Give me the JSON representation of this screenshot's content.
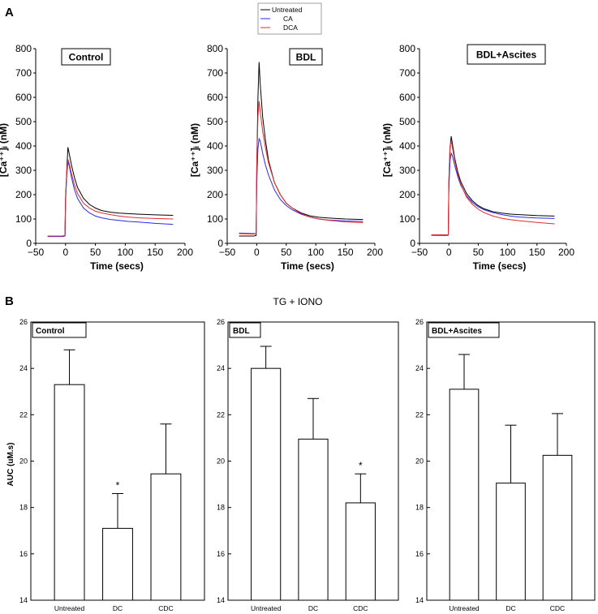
{
  "panel_labels": {
    "a": "A",
    "b": "B"
  },
  "legend": {
    "entries": [
      {
        "label": "Untreated",
        "color": "#000000"
      },
      {
        "label": "CA",
        "color": "#2a2ae8"
      },
      {
        "label": "DCA",
        "color": "#e82a2a"
      }
    ]
  },
  "section_b_title": "TG + IONO",
  "chart_data": [
    {
      "type": "line",
      "title": "Control",
      "xlabel": "Time (secs)",
      "ylabel": "[Ca⁺⁺]ᵢ (nM)",
      "xlim": [
        -50,
        200
      ],
      "ylim": [
        0,
        800
      ],
      "xticks": [
        -50,
        0,
        50,
        100,
        150,
        200
      ],
      "yticks": [
        0,
        100,
        200,
        300,
        400,
        500,
        600,
        700,
        800
      ],
      "series": [
        {
          "name": "Untreated",
          "color": "#000000",
          "x": [
            -30,
            -5,
            -1,
            0,
            2,
            4,
            6,
            10,
            15,
            20,
            30,
            40,
            50,
            60,
            75,
            90,
            105,
            120,
            150,
            180
          ],
          "y": [
            30,
            30,
            32,
            190,
            300,
            395,
            370,
            320,
            270,
            230,
            185,
            160,
            145,
            135,
            128,
            124,
            122,
            120,
            117,
            115
          ]
        },
        {
          "name": "CA",
          "color": "#2a2ae8",
          "x": [
            -30,
            -5,
            -1,
            0,
            2,
            4,
            6,
            10,
            15,
            20,
            30,
            40,
            50,
            60,
            75,
            90,
            105,
            120,
            150,
            180
          ],
          "y": [
            28,
            28,
            30,
            170,
            280,
            335,
            320,
            270,
            220,
            185,
            145,
            125,
            112,
            105,
            98,
            94,
            90,
            88,
            82,
            78
          ]
        },
        {
          "name": "DCA",
          "color": "#e82a2a",
          "x": [
            -30,
            -5,
            -1,
            0,
            2,
            4,
            6,
            10,
            15,
            20,
            30,
            40,
            50,
            60,
            75,
            90,
            105,
            120,
            150,
            180
          ],
          "y": [
            30,
            30,
            32,
            180,
            290,
            345,
            330,
            285,
            240,
            205,
            165,
            145,
            132,
            125,
            118,
            112,
            108,
            105,
            102,
            100
          ]
        }
      ]
    },
    {
      "type": "line",
      "title": "BDL",
      "xlabel": "Time (secs)",
      "ylabel": "[Ca⁺⁺]ᵢ (nM)",
      "xlim": [
        -50,
        200
      ],
      "ylim": [
        0,
        800
      ],
      "xticks": [
        -50,
        0,
        50,
        100,
        150,
        200
      ],
      "yticks": [
        0,
        100,
        200,
        300,
        400,
        500,
        600,
        700,
        800
      ],
      "series": [
        {
          "name": "Untreated",
          "color": "#000000",
          "x": [
            -30,
            -5,
            -1,
            0,
            2,
            4,
            6,
            10,
            15,
            20,
            30,
            40,
            50,
            60,
            75,
            90,
            105,
            120,
            150,
            180
          ],
          "y": [
            30,
            30,
            32,
            300,
            600,
            745,
            650,
            520,
            420,
            340,
            250,
            200,
            165,
            145,
            125,
            113,
            107,
            104,
            100,
            98
          ]
        },
        {
          "name": "CA",
          "color": "#2a2ae8",
          "x": [
            -30,
            -5,
            -1,
            0,
            2,
            4,
            6,
            10,
            15,
            20,
            30,
            40,
            50,
            60,
            75,
            90,
            105,
            120,
            150,
            180
          ],
          "y": [
            42,
            40,
            40,
            250,
            390,
            430,
            420,
            370,
            320,
            280,
            220,
            180,
            155,
            138,
            120,
            108,
            100,
            96,
            92,
            90
          ]
        },
        {
          "name": "DCA",
          "color": "#e82a2a",
          "x": [
            -30,
            -5,
            -1,
            0,
            2,
            4,
            6,
            10,
            15,
            20,
            30,
            40,
            50,
            60,
            75,
            90,
            105,
            120,
            150,
            180
          ],
          "y": [
            40,
            38,
            40,
            320,
            520,
            585,
            540,
            460,
            390,
            330,
            250,
            200,
            165,
            145,
            122,
            108,
            100,
            95,
            88,
            85
          ]
        }
      ]
    },
    {
      "type": "line",
      "title": "BDL+Ascites",
      "xlabel": "Time (secs)",
      "ylabel": "[Ca⁺⁺]ᵢ (nM)",
      "xlim": [
        -50,
        200
      ],
      "ylim": [
        0,
        800
      ],
      "xticks": [
        -50,
        0,
        50,
        100,
        150,
        200
      ],
      "yticks": [
        0,
        100,
        200,
        300,
        400,
        500,
        600,
        700,
        800
      ],
      "series": [
        {
          "name": "Untreated",
          "color": "#000000",
          "x": [
            -30,
            -5,
            -1,
            0,
            2,
            4,
            6,
            10,
            15,
            20,
            30,
            40,
            50,
            60,
            75,
            90,
            105,
            120,
            150,
            180
          ],
          "y": [
            35,
            34,
            35,
            250,
            390,
            440,
            410,
            350,
            295,
            255,
            205,
            175,
            155,
            142,
            130,
            124,
            120,
            118,
            114,
            112
          ]
        },
        {
          "name": "CA",
          "color": "#2a2ae8",
          "x": [
            -30,
            -5,
            -1,
            0,
            2,
            4,
            6,
            10,
            15,
            20,
            30,
            40,
            50,
            60,
            75,
            90,
            105,
            120,
            150,
            180
          ],
          "y": [
            33,
            32,
            33,
            220,
            340,
            370,
            360,
            320,
            275,
            240,
            195,
            168,
            150,
            138,
            126,
            118,
            112,
            108,
            104,
            102
          ]
        },
        {
          "name": "DCA",
          "color": "#e82a2a",
          "x": [
            -30,
            -5,
            -1,
            0,
            2,
            4,
            6,
            10,
            15,
            20,
            30,
            40,
            50,
            60,
            75,
            90,
            105,
            120,
            150,
            180
          ],
          "y": [
            35,
            34,
            35,
            260,
            400,
            420,
            395,
            340,
            285,
            245,
            190,
            160,
            140,
            126,
            112,
            103,
            97,
            93,
            86,
            80
          ]
        }
      ]
    },
    {
      "type": "bar",
      "title": "Control",
      "ylabel": "AUC (uM.s)",
      "ylim": [
        14,
        26
      ],
      "yticks": [
        14,
        16,
        18,
        20,
        22,
        24,
        26
      ],
      "categories": [
        "Untreated",
        "DC",
        "CDC"
      ],
      "values": [
        23.3,
        17.1,
        19.45
      ],
      "errors": [
        1.5,
        1.5,
        2.15
      ],
      "annotations": [
        "",
        "*",
        ""
      ]
    },
    {
      "type": "bar",
      "title": "BDL",
      "ylabel": "",
      "ylim": [
        14,
        26
      ],
      "yticks": [
        14,
        16,
        18,
        20,
        22,
        24,
        26
      ],
      "categories": [
        "Untreated",
        "DC",
        "CDC"
      ],
      "values": [
        24.0,
        20.95,
        18.2
      ],
      "errors": [
        0.95,
        1.75,
        1.25
      ],
      "annotations": [
        "",
        "",
        "*"
      ]
    },
    {
      "type": "bar",
      "title": "BDL+Ascites",
      "ylabel": "",
      "ylim": [
        14,
        26
      ],
      "yticks": [
        14,
        16,
        18,
        20,
        22,
        24,
        26
      ],
      "categories": [
        "Untreated",
        "DC",
        "CDC"
      ],
      "values": [
        23.1,
        19.05,
        20.25
      ],
      "errors": [
        1.5,
        2.5,
        1.8
      ],
      "annotations": [
        "",
        "",
        ""
      ]
    }
  ]
}
